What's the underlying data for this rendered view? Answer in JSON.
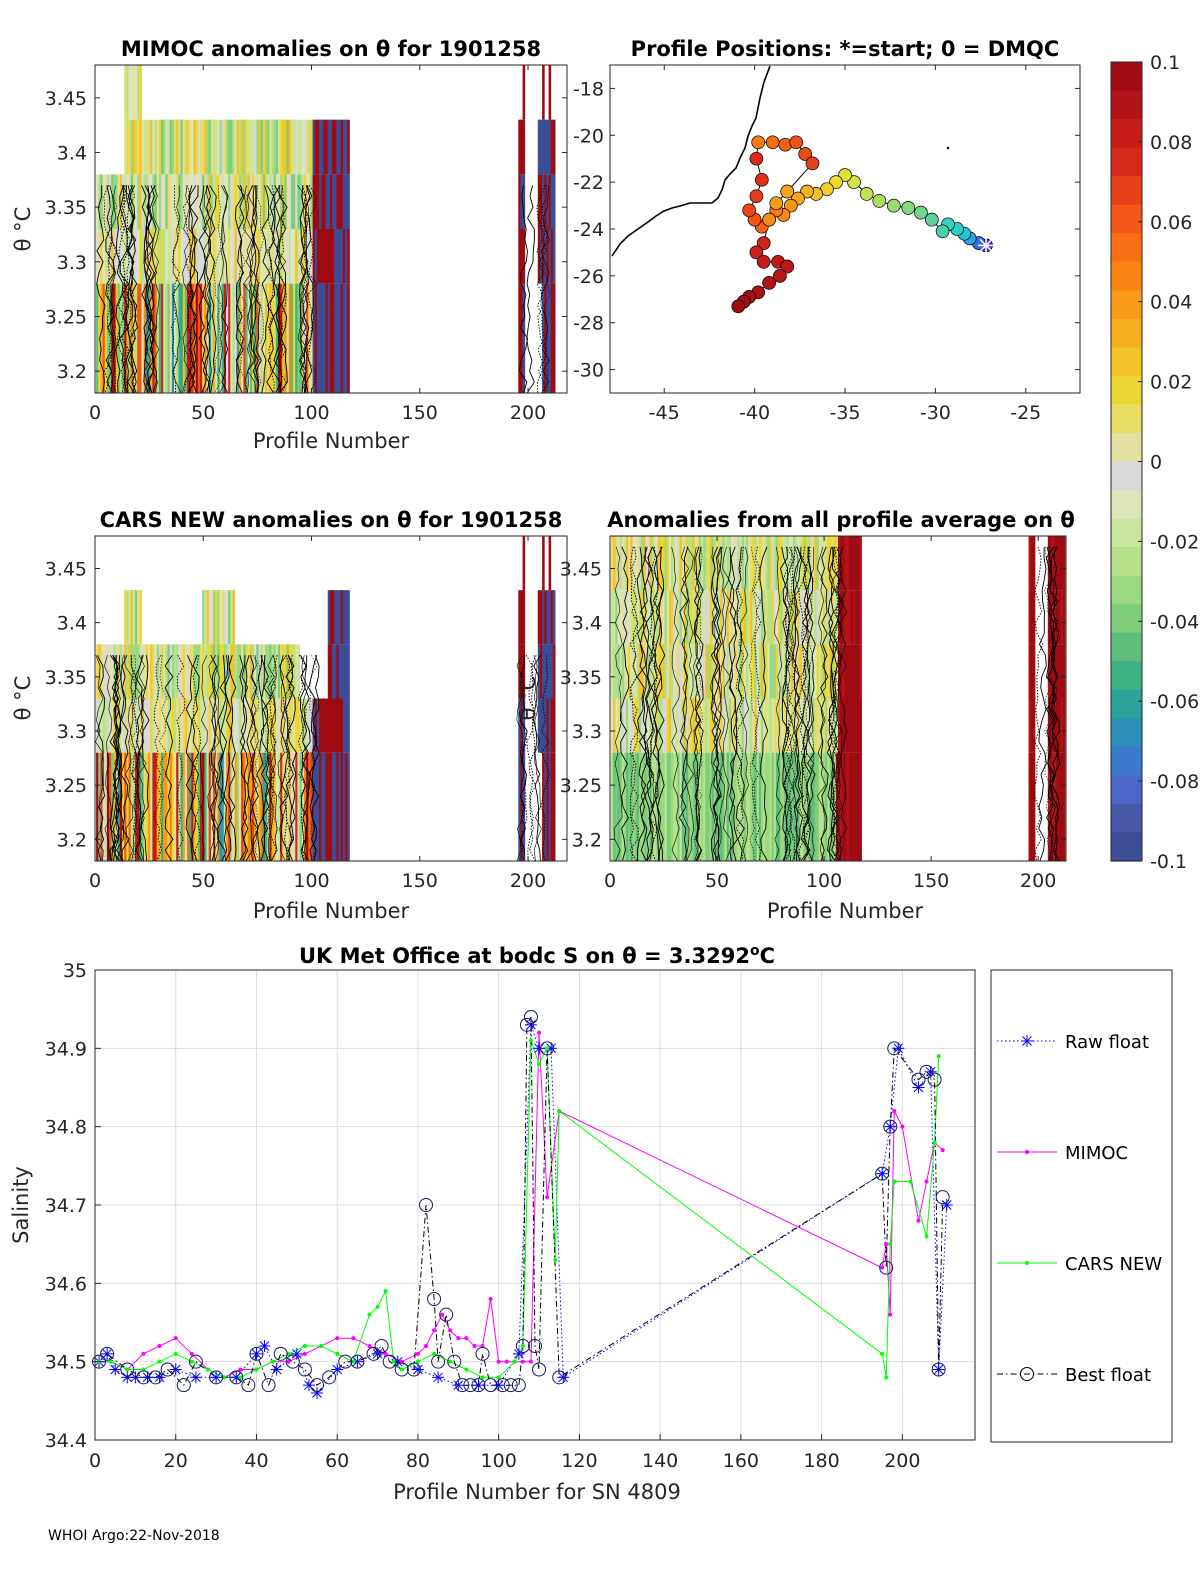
{
  "footer": "WHOI Argo:22-Nov-2018",
  "colors": {
    "raw": "#0000ff",
    "mimoc": "#ff00ff",
    "cars": "#00ff00",
    "best": "#000000",
    "grid": "#dcdcdc"
  },
  "chart_data": [
    {
      "id": "mimoc_anom",
      "type": "heatmap",
      "title": "MIMOC anomalies on θ  for 1901258",
      "xlabel": "Profile Number",
      "ylabel": "θ °C",
      "xlim": [
        0,
        218
      ],
      "ylim": [
        3.18,
        3.48
      ],
      "xticks": [
        0,
        50,
        100,
        150,
        200
      ],
      "yticks": [
        3.2,
        3.25,
        3.3,
        3.35,
        3.4,
        3.45
      ],
      "ytick_labels": [
        "3.2",
        "3.25",
        "3.3",
        "3.35",
        "3.4",
        "3.45"
      ],
      "profile_ranges": [
        [
          1,
          117
        ],
        [
          196,
          212
        ]
      ],
      "data_tops": [
        3.43,
        3.38,
        3.33,
        3.28
      ]
    },
    {
      "id": "positions",
      "type": "scatter",
      "title": "Profile Positions: *=start; 0 = DMQC",
      "xlim": [
        -48,
        -22
      ],
      "ylim": [
        -31,
        -17
      ],
      "xticks": [
        -45,
        -40,
        -35,
        -30,
        -25
      ],
      "yticks": [
        -18,
        -20,
        -22,
        -24,
        -26,
        -28,
        -30
      ],
      "track": [
        [
          -27.2,
          -24.7
        ],
        [
          -27.6,
          -24.6
        ],
        [
          -28.1,
          -24.4
        ],
        [
          -28.4,
          -24.2
        ],
        [
          -28.8,
          -24.0
        ],
        [
          -29.3,
          -23.8
        ],
        [
          -29.6,
          -24.1
        ],
        [
          -30.2,
          -23.6
        ],
        [
          -30.8,
          -23.3
        ],
        [
          -31.5,
          -23.1
        ],
        [
          -32.3,
          -23.0
        ],
        [
          -33.1,
          -22.8
        ],
        [
          -33.8,
          -22.5
        ],
        [
          -34.5,
          -22.0
        ],
        [
          -35.0,
          -21.7
        ],
        [
          -35.5,
          -22.0
        ],
        [
          -36.0,
          -22.3
        ],
        [
          -36.6,
          -22.5
        ],
        [
          -37.1,
          -22.4
        ],
        [
          -37.6,
          -22.7
        ],
        [
          -38.0,
          -23.0
        ],
        [
          -38.4,
          -23.4
        ],
        [
          -38.8,
          -23.2
        ],
        [
          -39.2,
          -23.6
        ],
        [
          -39.6,
          -23.9
        ],
        [
          -40.0,
          -23.6
        ],
        [
          -40.3,
          -23.2
        ],
        [
          -39.9,
          -22.6
        ],
        [
          -39.6,
          -21.9
        ],
        [
          -39.9,
          -21.0
        ],
        [
          -39.8,
          -20.3
        ],
        [
          -39.0,
          -20.3
        ],
        [
          -38.3,
          -20.4
        ],
        [
          -37.7,
          -20.3
        ],
        [
          -37.2,
          -20.8
        ],
        [
          -36.8,
          -21.2
        ],
        [
          -38.2,
          -22.4
        ],
        [
          -38.8,
          -22.9
        ],
        [
          -39.2,
          -23.6
        ],
        [
          -39.5,
          -24.6
        ],
        [
          -39.9,
          -25.0
        ],
        [
          -39.5,
          -25.4
        ],
        [
          -38.7,
          -25.4
        ],
        [
          -38.2,
          -25.6
        ],
        [
          -38.6,
          -26.0
        ],
        [
          -39.2,
          -26.3
        ],
        [
          -39.8,
          -26.7
        ],
        [
          -40.3,
          -26.9
        ],
        [
          -40.6,
          -27.1
        ],
        [
          -40.9,
          -27.3
        ]
      ],
      "track_colors": [
        "#5b2fd3",
        "#3a6ae0",
        "#2aa3df",
        "#22c4d6",
        "#28d0c8",
        "#38d2bb",
        "#48d0ad",
        "#5bd39e",
        "#6fd68e",
        "#84d97e",
        "#98dc6e",
        "#acdf5f",
        "#c0e151",
        "#d3e244",
        "#e4e03a",
        "#ecd832",
        "#f1cc2c",
        "#f4c026",
        "#f6b221",
        "#f8a41c",
        "#fa9517",
        "#fb8714",
        "#fb7a12",
        "#fb6d10",
        "#fa6010",
        "#f45312",
        "#ee4614",
        "#e73a16",
        "#e02f18",
        "#da281a",
        "#f57b14",
        "#f36e13",
        "#f06212",
        "#ec5614",
        "#e84b16",
        "#e44018",
        "#f7a41c",
        "#f59a1a",
        "#f28d18",
        "#d0231b",
        "#cb201b",
        "#c61d1b",
        "#c11a1a",
        "#bc1719",
        "#b71518",
        "#b21317",
        "#ad1116",
        "#a80f15",
        "#a30d14",
        "#9e0b13"
      ]
    },
    {
      "id": "cars_anom",
      "type": "heatmap",
      "title": "CARS NEW anomalies on θ for 1901258",
      "xlabel": "",
      "ylabel": "θ °C",
      "xlim": [
        0,
        218
      ],
      "ylim": [
        3.18,
        3.48
      ],
      "xticks": [
        0,
        50,
        100,
        150,
        200
      ],
      "yticks": [
        3.2,
        3.25,
        3.3,
        3.35,
        3.4,
        3.45
      ],
      "ytick_labels": [
        "3.2",
        "3.25",
        "3.3",
        "3.35",
        "3.4",
        "3.45"
      ],
      "profile_ranges": [
        [
          1,
          117
        ],
        [
          196,
          212
        ]
      ],
      "data_tops": [
        3.43,
        3.38,
        3.33,
        3.28
      ]
    },
    {
      "id": "all_avg_anom",
      "type": "heatmap",
      "title": "Anomalies from all profile average on θ",
      "xlabel": "Profile Number",
      "ylabel": "θ °C",
      "xlim": [
        0,
        213
      ],
      "ylim": [
        3.18,
        3.48
      ],
      "xticks": [
        0,
        50,
        100,
        150,
        200
      ],
      "yticks": [
        3.2,
        3.25,
        3.3,
        3.35,
        3.4,
        3.45
      ],
      "ytick_labels": [
        "3.2",
        "3.25",
        "3.3",
        "3.35",
        "3.4",
        "3.45"
      ],
      "profile_ranges": [
        [
          1,
          117
        ],
        [
          196,
          212
        ]
      ],
      "data_tops": [
        3.48,
        3.48,
        3.48,
        3.48
      ]
    },
    {
      "id": "colorbar",
      "type": "colorbar",
      "range": [
        -0.1,
        0.1
      ],
      "ticks": [
        0.1,
        0.08,
        0.06,
        0.04,
        0.02,
        0,
        -0.02,
        -0.04,
        -0.06,
        -0.08,
        -0.1
      ],
      "tick_labels": [
        "0.1",
        "0.08",
        "0.06",
        "0.04",
        "0.02",
        "0",
        "-0.02",
        "-0.04",
        "-0.06",
        "-0.08",
        "-0.1"
      ],
      "colors": [
        "#9e0b13",
        "#b3141a",
        "#c61d1b",
        "#d52a1b",
        "#e6411a",
        "#f25717",
        "#f86e14",
        "#fb8413",
        "#fa9b18",
        "#f6b01f",
        "#f1c326",
        "#ecd634",
        "#e8dd66",
        "#e4e0a4",
        "#d9d9d9",
        "#dde6b8",
        "#c9e6a0",
        "#b4e18a",
        "#9bd880",
        "#7fcd7a",
        "#5ebf7c",
        "#3fb284",
        "#2aa39b",
        "#2c8fb7",
        "#3a7acd",
        "#4b66c8",
        "#4758a8",
        "#3c4d96"
      ]
    },
    {
      "id": "salinity",
      "type": "line",
      "title": "UK Met Office at bodc S on θ = 3.3292°C",
      "title_prefix": "UK Met Office at bodc S on θ = 3.3292",
      "title_sup": "o",
      "title_suffix": "C",
      "xlabel": "Profile Number for SN 4809",
      "ylabel": "Salinity",
      "xlim": [
        0,
        218
      ],
      "ylim": [
        34.4,
        35.0
      ],
      "xticks": [
        0,
        20,
        40,
        60,
        80,
        100,
        120,
        140,
        160,
        180,
        200
      ],
      "yticks": [
        34.4,
        34.5,
        34.6,
        34.7,
        34.8,
        34.9,
        35.0
      ],
      "ytick_labels": [
        "34.4",
        "34.5",
        "34.6",
        "34.7",
        "34.8",
        "34.9",
        "35"
      ],
      "series": [
        {
          "name": "Raw float",
          "style": "dotted-star",
          "x": [
            1,
            3,
            5,
            8,
            10,
            13,
            16,
            20,
            25,
            30,
            35,
            40,
            42,
            45,
            50,
            53,
            55,
            60,
            65,
            70,
            75,
            80,
            85,
            90,
            95,
            100,
            105,
            108,
            110,
            113,
            116,
            195,
            197,
            199,
            204,
            207,
            209,
            211
          ],
          "values": [
            34.5,
            34.51,
            34.49,
            34.48,
            34.48,
            34.48,
            34.48,
            34.49,
            34.48,
            34.48,
            34.48,
            34.51,
            34.52,
            34.49,
            34.51,
            34.47,
            34.46,
            34.49,
            34.5,
            34.51,
            34.5,
            34.49,
            34.48,
            34.47,
            34.47,
            34.47,
            34.51,
            34.93,
            34.9,
            34.9,
            34.48,
            34.74,
            34.8,
            34.9,
            34.85,
            34.87,
            34.49,
            34.7
          ]
        },
        {
          "name": "MIMOC",
          "style": "solid-dot",
          "x": [
            1,
            4,
            8,
            12,
            16,
            20,
            24,
            28,
            32,
            36,
            40,
            44,
            48,
            52,
            56,
            60,
            64,
            68,
            72,
            76,
            80,
            82,
            84,
            86,
            88,
            90,
            92,
            94,
            96,
            98,
            100,
            102,
            104,
            106,
            108,
            110,
            112,
            115,
            195,
            196,
            197,
            198,
            200,
            204,
            206,
            208,
            210
          ],
          "values": [
            34.5,
            34.5,
            34.49,
            34.51,
            34.52,
            34.53,
            34.51,
            34.49,
            34.48,
            34.49,
            34.49,
            34.5,
            34.5,
            34.51,
            34.52,
            34.53,
            34.53,
            34.52,
            34.51,
            34.5,
            34.51,
            34.52,
            34.54,
            34.56,
            34.54,
            34.53,
            34.53,
            34.52,
            34.52,
            34.58,
            34.5,
            34.5,
            34.5,
            34.5,
            34.5,
            34.92,
            34.71,
            34.82,
            34.62,
            34.65,
            34.56,
            34.82,
            34.8,
            34.68,
            34.73,
            34.78,
            34.77
          ]
        },
        {
          "name": "CARS NEW",
          "style": "solid-dot",
          "x": [
            1,
            4,
            8,
            12,
            16,
            20,
            24,
            28,
            32,
            36,
            40,
            44,
            48,
            52,
            56,
            60,
            64,
            68,
            70,
            72,
            74,
            76,
            80,
            84,
            88,
            92,
            96,
            100,
            104,
            106,
            108,
            110,
            112,
            114,
            115,
            195,
            196,
            197,
            198,
            202,
            206,
            208,
            209
          ],
          "values": [
            34.5,
            34.5,
            34.49,
            34.49,
            34.5,
            34.51,
            34.5,
            34.49,
            34.48,
            34.48,
            34.49,
            34.5,
            34.51,
            34.52,
            34.52,
            34.51,
            34.5,
            34.56,
            34.57,
            34.59,
            34.5,
            34.49,
            34.5,
            34.51,
            34.5,
            34.49,
            34.48,
            34.48,
            34.5,
            34.52,
            34.91,
            34.88,
            34.9,
            34.63,
            34.82,
            34.51,
            34.48,
            34.65,
            34.73,
            34.73,
            34.66,
            34.78,
            34.89
          ]
        },
        {
          "name": "Best float",
          "style": "dashdot-circle",
          "x": [
            1,
            3,
            8,
            12,
            15,
            18,
            22,
            25,
            30,
            35,
            38,
            40,
            43,
            46,
            49,
            52,
            55,
            58,
            62,
            65,
            69,
            71,
            73,
            76,
            79,
            82,
            84,
            85,
            87,
            89,
            91,
            93,
            95,
            96,
            98,
            101,
            103,
            105,
            106,
            107,
            108,
            109,
            110,
            112,
            115,
            195,
            196,
            197,
            198,
            204,
            206,
            208,
            209,
            210
          ],
          "values": [
            34.5,
            34.51,
            34.49,
            34.48,
            34.48,
            34.49,
            34.47,
            34.5,
            34.48,
            34.48,
            34.47,
            34.51,
            34.47,
            34.51,
            34.5,
            34.49,
            34.47,
            34.48,
            34.5,
            34.5,
            34.51,
            34.52,
            34.5,
            34.49,
            34.49,
            34.7,
            34.58,
            34.5,
            34.56,
            34.5,
            34.47,
            34.47,
            34.47,
            34.51,
            34.47,
            34.47,
            34.47,
            34.47,
            34.52,
            34.93,
            34.94,
            34.52,
            34.49,
            34.9,
            34.48,
            34.74,
            34.62,
            34.8,
            34.9,
            34.86,
            34.87,
            34.86,
            34.49,
            34.71
          ]
        }
      ]
    }
  ]
}
